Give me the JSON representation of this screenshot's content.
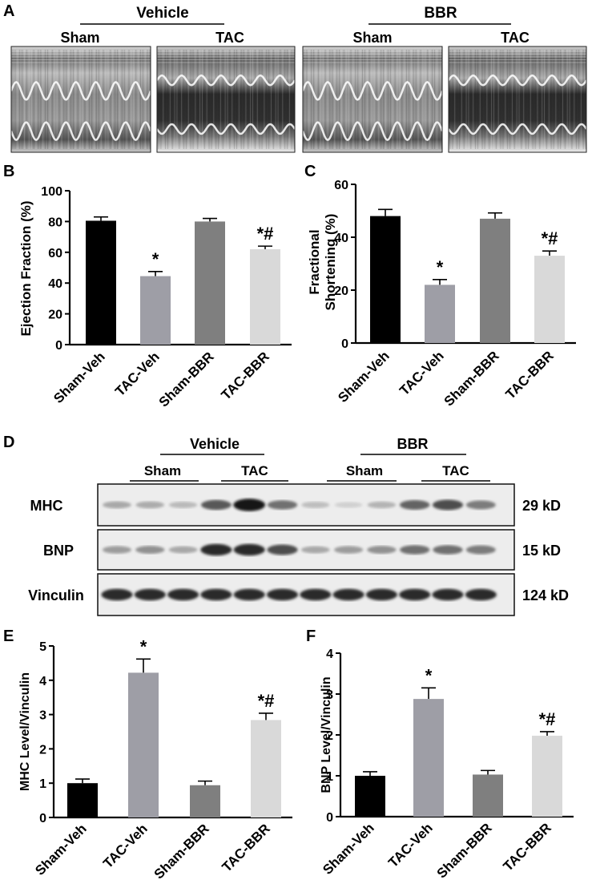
{
  "panels": {
    "A": {
      "letter": "A",
      "groups": [
        "Vehicle",
        "BBR"
      ],
      "images": [
        "Sham",
        "TAC",
        "Sham",
        "TAC"
      ]
    },
    "D": {
      "letter": "D",
      "groups": [
        "Vehicle",
        "BBR"
      ],
      "subgroups": [
        "Sham",
        "TAC",
        "Sham",
        "TAC"
      ],
      "rows": [
        {
          "label": "MHC",
          "size": "29 kD",
          "bands": [
            0.3,
            0.28,
            0.22,
            0.65,
            0.95,
            0.55,
            0.2,
            0.12,
            0.25,
            0.6,
            0.7,
            0.5
          ]
        },
        {
          "label": "BNP",
          "size": "15 kD",
          "bands": [
            0.35,
            0.4,
            0.3,
            0.85,
            0.85,
            0.7,
            0.3,
            0.35,
            0.4,
            0.55,
            0.55,
            0.5
          ]
        },
        {
          "label": "Vinculin",
          "size": "124 kD",
          "bands": [
            0.85,
            0.85,
            0.85,
            0.85,
            0.85,
            0.85,
            0.85,
            0.85,
            0.85,
            0.85,
            0.85,
            0.85
          ]
        }
      ]
    }
  },
  "colors": [
    "#000000",
    "#9e9ea6",
    "#7f7f7f",
    "#d9d9d9"
  ],
  "chart_data": [
    {
      "id": "B",
      "letter": "B",
      "type": "bar",
      "categories": [
        "Sham-Veh",
        "TAC-Veh",
        "Sham-BBR",
        "TAC-BBR"
      ],
      "values": [
        80.5,
        44.5,
        80,
        62
      ],
      "errors": [
        2.5,
        3,
        2,
        2
      ],
      "annotations": [
        "",
        "*",
        "",
        "*#"
      ],
      "ylabel": "Ejection Fraction (%)",
      "ylim": [
        0,
        100
      ],
      "yticks": [
        "0",
        "20",
        "40",
        "60",
        "80",
        "100"
      ]
    },
    {
      "id": "C",
      "letter": "C",
      "type": "bar",
      "categories": [
        "Sham-Veh",
        "TAC-Veh",
        "Sham-BBR",
        "TAC-BBR"
      ],
      "values": [
        48,
        22,
        47,
        33
      ],
      "errors": [
        2.5,
        2,
        2.2,
        1.8
      ],
      "annotations": [
        "",
        "*",
        "",
        "*#"
      ],
      "ylabel": "Fractional Shortening (%)",
      "ylim": [
        0,
        60
      ],
      "yticks": [
        "0",
        "20",
        "40",
        "60"
      ]
    },
    {
      "id": "E",
      "letter": "E",
      "type": "bar",
      "categories": [
        "Sham-Veh",
        "TAC-Veh",
        "Sham-BBR",
        "TAC-BBR"
      ],
      "values": [
        1.0,
        4.22,
        0.94,
        2.84
      ],
      "errors": [
        0.12,
        0.4,
        0.12,
        0.2
      ],
      "annotations": [
        "",
        "*",
        "",
        "*#"
      ],
      "ylabel": "MHC Level/Vinculin",
      "ylim": [
        0,
        5
      ],
      "yticks": [
        "0",
        "1",
        "2",
        "3",
        "4",
        "5"
      ]
    },
    {
      "id": "F",
      "letter": "F",
      "type": "bar",
      "categories": [
        "Sham-Veh",
        "TAC-Veh",
        "Sham-BBR",
        "TAC-BBR"
      ],
      "values": [
        1.0,
        2.88,
        1.03,
        1.98
      ],
      "errors": [
        0.1,
        0.27,
        0.1,
        0.1
      ],
      "annotations": [
        "",
        "*",
        "",
        "*#"
      ],
      "ylabel": "BNP Level/Vinculin",
      "ylim": [
        0,
        4
      ],
      "yticks": [
        "0",
        "1",
        "2",
        "3",
        "4"
      ]
    }
  ]
}
